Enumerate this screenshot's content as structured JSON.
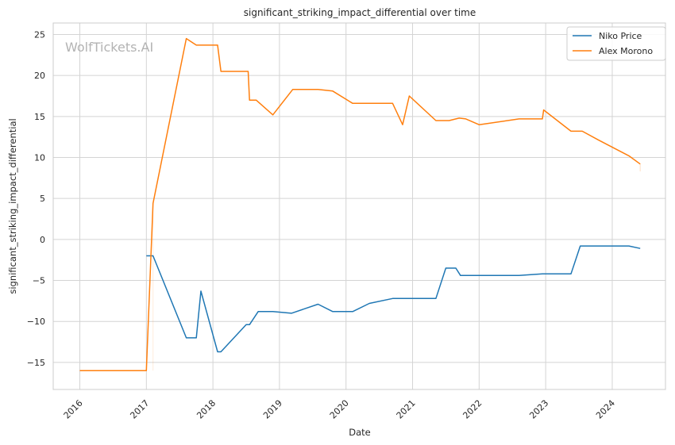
{
  "chart_data": {
    "type": "line",
    "title": "significant_striking_impact_differential over time",
    "xlabel": "Date",
    "ylabel": "significant_striking_impact_differential",
    "watermark": "WolfTickets.AI",
    "xlim": [
      2015.6,
      2024.8
    ],
    "ylim": [
      -18.3,
      26.4
    ],
    "xticks": [
      2016,
      2017,
      2018,
      2019,
      2020,
      2021,
      2022,
      2023,
      2024
    ],
    "xtick_labels": [
      "2016",
      "2017",
      "2018",
      "2019",
      "2020",
      "2021",
      "2022",
      "2023",
      "2024"
    ],
    "yticks": [
      -15,
      -10,
      -5,
      0,
      5,
      10,
      15,
      20,
      25
    ],
    "ytick_labels": [
      "−15",
      "−10",
      "−5",
      "0",
      "5",
      "10",
      "15",
      "20",
      "25"
    ],
    "grid": true,
    "legend_position": "top-right",
    "series": [
      {
        "name": "Niko Price",
        "color": "#1f77b4",
        "x": [
          2017.0,
          2017.1,
          2017.6,
          2017.75,
          2017.82,
          2018.07,
          2018.12,
          2018.5,
          2018.55,
          2018.68,
          2018.9,
          2019.18,
          2019.58,
          2019.8,
          2020.1,
          2020.35,
          2020.7,
          2021.35,
          2021.5,
          2021.65,
          2021.72,
          2022.6,
          2022.95,
          2023.38,
          2023.52,
          2024.25,
          2024.42
        ],
        "y": [
          -2,
          -2,
          -12,
          -12,
          -6.3,
          -13.7,
          -13.7,
          -10.4,
          -10.4,
          -8.8,
          -8.8,
          -9,
          -7.9,
          -8.8,
          -8.8,
          -7.8,
          -7.2,
          -7.2,
          -3.5,
          -3.5,
          -4.4,
          -4.4,
          -4.2,
          -4.2,
          -0.8,
          -0.8,
          -1.1
        ]
      },
      {
        "name": "Alex Morono",
        "color": "#ff7f0e",
        "x": [
          2016.0,
          2017.0,
          2017.1,
          2017.6,
          2017.75,
          2018.07,
          2018.12,
          2018.53,
          2018.55,
          2018.65,
          2018.9,
          2019.2,
          2019.58,
          2019.8,
          2020.1,
          2020.7,
          2020.85,
          2020.95,
          2021.35,
          2021.55,
          2021.7,
          2021.8,
          2022.0,
          2022.6,
          2022.95,
          2022.97,
          2023.38,
          2023.55,
          2023.8,
          2024.25,
          2024.42
        ],
        "y": [
          -16,
          -16,
          4.4,
          24.5,
          23.7,
          23.7,
          20.5,
          20.5,
          17,
          17,
          15.2,
          18.3,
          18.3,
          18.1,
          16.6,
          16.6,
          14,
          17.5,
          14.5,
          14.5,
          14.8,
          14.7,
          14,
          14.7,
          14.7,
          15.8,
          13.2,
          13.2,
          12.1,
          10.2,
          9.2
        ]
      }
    ]
  }
}
